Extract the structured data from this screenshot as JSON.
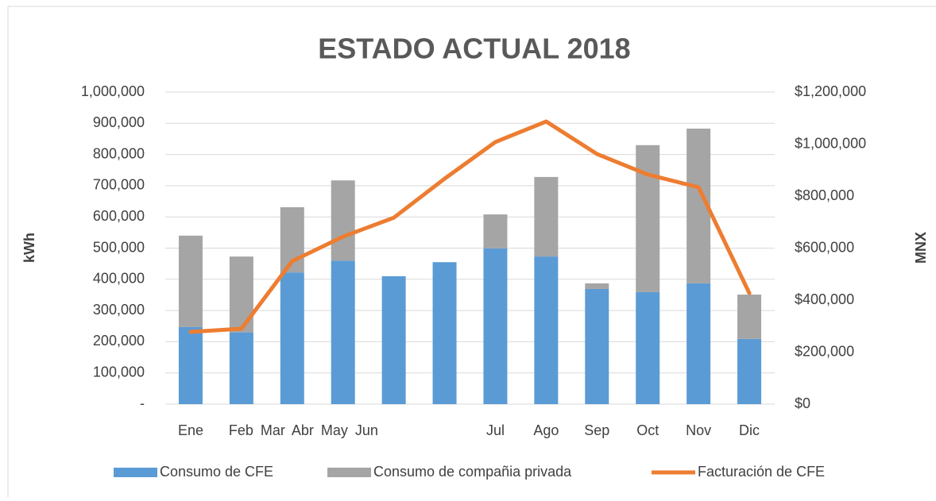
{
  "chart_data": {
    "type": "bar_line",
    "title": "ESTADO ACTUAL 2018",
    "categories": [
      "Ene",
      "Feb Mar Abr May Jun",
      null,
      null,
      null,
      null,
      "Jul",
      "Ago",
      "Sep",
      "Oct",
      "Nov",
      "Dic"
    ],
    "series": [
      {
        "name": "Consumo de CFE",
        "color": "#5b9bd5",
        "values": [
          247000,
          230000,
          422000,
          460000,
          410000,
          455000,
          499000,
          473000,
          369000,
          359000,
          387000,
          209000
        ]
      },
      {
        "name": "Consumo de compañia privada",
        "color": "#a5a5a5",
        "values": [
          293000,
          243000,
          209000,
          257000,
          0,
          0,
          109000,
          255000,
          18000,
          471000,
          496000,
          142000
        ]
      },
      {
        "name": "Facturación de CFE",
        "color": "#ed7d31",
        "axis": "y2",
        "values": [
          278000,
          290000,
          550000,
          644000,
          717000,
          867000,
          1008000,
          1087000,
          962000,
          883000,
          834000,
          427000
        ]
      }
    ],
    "ylabel": "kWh",
    "y2label": "MNX",
    "ylim": [
      0,
      1000000
    ],
    "yticks": [
      {
        "value": 0,
        "label": "-"
      },
      {
        "value": 100000,
        "label": "100,000"
      },
      {
        "value": 200000,
        "label": "200,000"
      },
      {
        "value": 300000,
        "label": "300,000"
      },
      {
        "value": 400000,
        "label": "400,000"
      },
      {
        "value": 500000,
        "label": "500,000"
      },
      {
        "value": 600000,
        "label": "600,000"
      },
      {
        "value": 700000,
        "label": "700,000"
      },
      {
        "value": 800000,
        "label": "800,000"
      },
      {
        "value": 900000,
        "label": "900,000"
      },
      {
        "value": 1000000,
        "label": "1,000,000"
      }
    ],
    "y2lim": [
      0,
      1200000
    ],
    "y2ticks": [
      {
        "value": 0,
        "label": "$0"
      },
      {
        "value": 200000,
        "label": "$200,000"
      },
      {
        "value": 400000,
        "label": "$400,000"
      },
      {
        "value": 600000,
        "label": "$600,000"
      },
      {
        "value": 800000,
        "label": "$800,000"
      },
      {
        "value": 1000000,
        "label": "$1,000,000"
      },
      {
        "value": 1200000,
        "label": "$1,200,000"
      }
    ],
    "grid": true,
    "legend": "bottom"
  }
}
